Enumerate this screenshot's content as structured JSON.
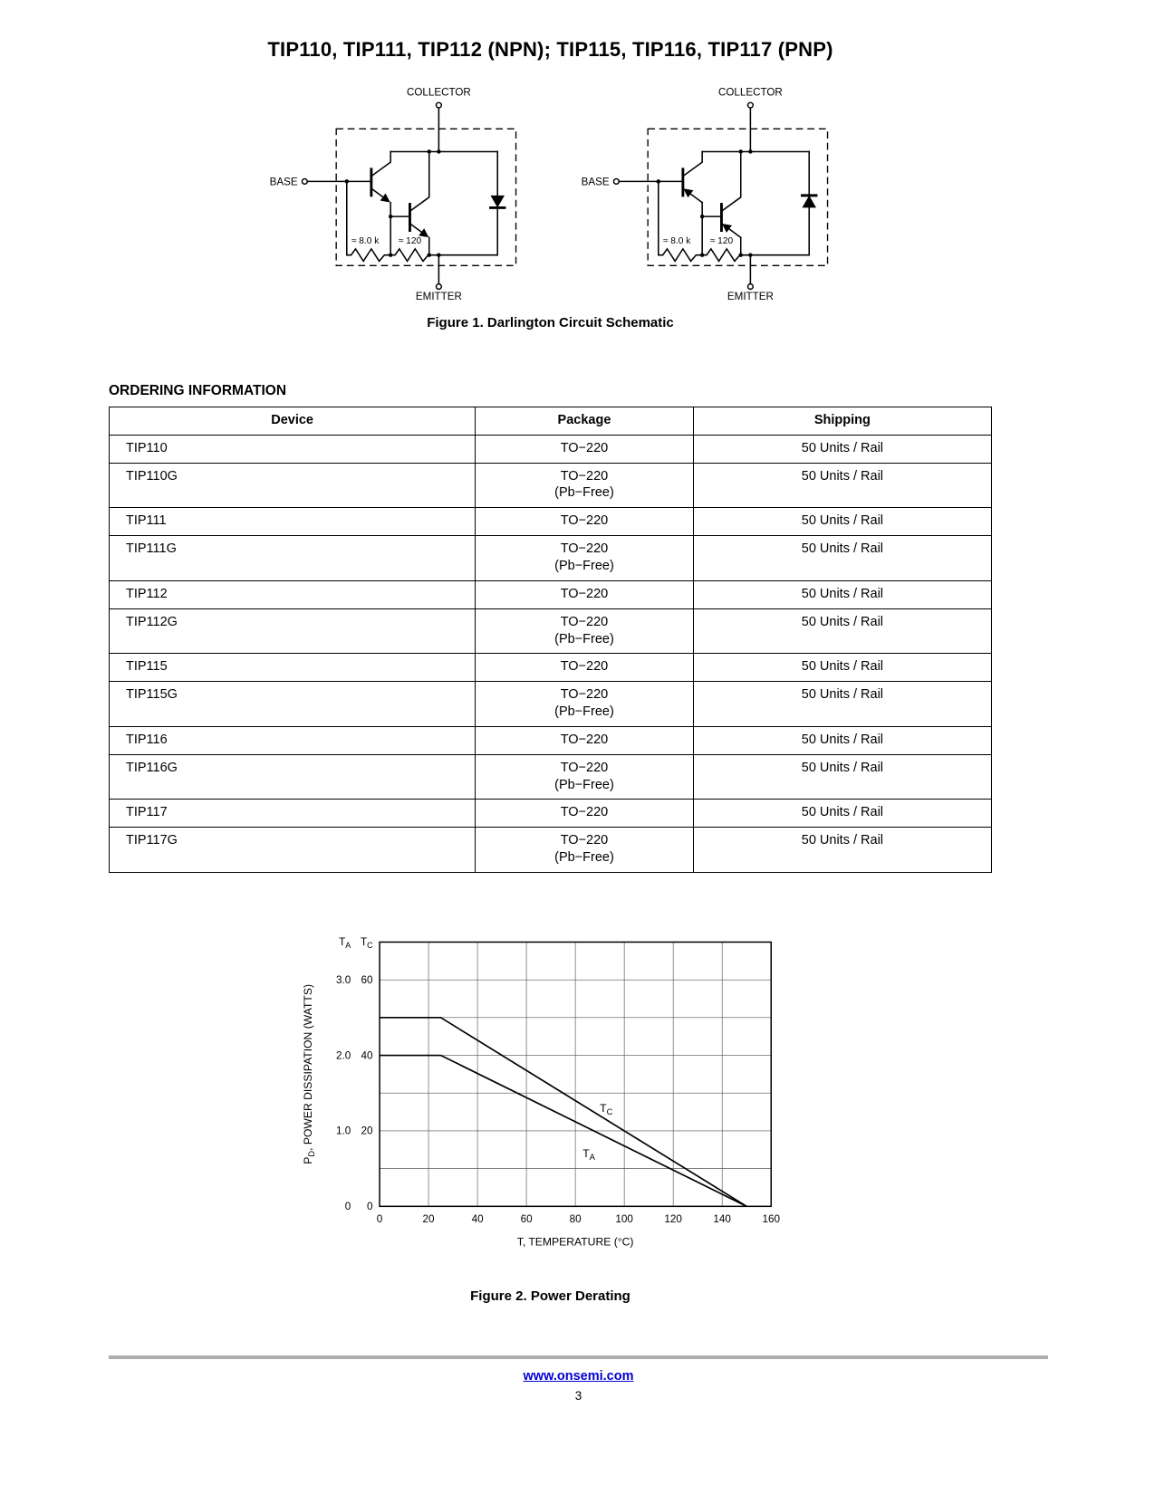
{
  "page": {
    "title": "TIP110, TIP111, TIP112 (NPN); TIP115, TIP116, TIP117 (PNP)"
  },
  "figure1": {
    "caption": "Figure 1. Darlington Circuit Schematic",
    "labels": {
      "collector": "COLLECTOR",
      "base": "BASE",
      "emitter": "EMITTER",
      "r1": "≈ 8.0 k",
      "r2": "≈ 120"
    }
  },
  "ordering": {
    "heading": "ORDERING INFORMATION",
    "columns": [
      "Device",
      "Package",
      "Shipping"
    ],
    "rows": [
      {
        "device": "TIP110",
        "package": [
          "TO−220"
        ],
        "shipping": "50 Units / Rail"
      },
      {
        "device": "TIP110G",
        "package": [
          "TO−220",
          "(Pb−Free)"
        ],
        "shipping": "50 Units / Rail"
      },
      {
        "device": "TIP111",
        "package": [
          "TO−220"
        ],
        "shipping": "50 Units / Rail"
      },
      {
        "device": "TIP111G",
        "package": [
          "TO−220",
          "(Pb−Free)"
        ],
        "shipping": "50 Units / Rail"
      },
      {
        "device": "TIP112",
        "package": [
          "TO−220"
        ],
        "shipping": "50 Units / Rail"
      },
      {
        "device": "TIP112G",
        "package": [
          "TO−220",
          "(Pb−Free)"
        ],
        "shipping": "50 Units / Rail"
      },
      {
        "device": "TIP115",
        "package": [
          "TO−220"
        ],
        "shipping": "50 Units / Rail"
      },
      {
        "device": "TIP115G",
        "package": [
          "TO−220",
          "(Pb−Free)"
        ],
        "shipping": "50 Units / Rail"
      },
      {
        "device": "TIP116",
        "package": [
          "TO−220"
        ],
        "shipping": "50 Units / Rail"
      },
      {
        "device": "TIP116G",
        "package": [
          "TO−220",
          "(Pb−Free)"
        ],
        "shipping": "50 Units / Rail"
      },
      {
        "device": "TIP117",
        "package": [
          "TO−220"
        ],
        "shipping": "50 Units / Rail"
      },
      {
        "device": "TIP117G",
        "package": [
          "TO−220",
          "(Pb−Free)"
        ],
        "shipping": "50 Units / Rail"
      }
    ]
  },
  "chart_data": {
    "type": "line",
    "title": "Power Derating",
    "xlabel": "T, TEMPERATURE (°C)",
    "ylabel": "P_D, POWER DISSIPATION (WATTS)",
    "grid": true,
    "x": {
      "min": 0,
      "max": 160,
      "tick_step": 20,
      "grid_step": 20
    },
    "y": {
      "min": 0,
      "max": 70,
      "grid_step": 10,
      "tick_values": [
        0,
        20,
        40,
        60
      ],
      "ta_tick_labels": [
        "0",
        "1.0",
        "2.0",
        "3.0"
      ],
      "tc_tick_labels": [
        "0",
        "20",
        "40",
        "60"
      ],
      "column_headers": [
        "T_A",
        "T_C"
      ]
    },
    "series": [
      {
        "name": "T_C",
        "units": "watts (case-derating scale)",
        "scale_to_plot": 1,
        "points": [
          [
            0,
            50
          ],
          [
            25,
            50
          ],
          [
            150,
            0
          ]
        ],
        "label_at": [
          90,
          25
        ]
      },
      {
        "name": "T_A",
        "units": "watts (ambient-derating scale)",
        "scale_to_plot": 20,
        "points": [
          [
            0,
            2.0
          ],
          [
            25,
            2.0
          ],
          [
            150,
            0
          ]
        ],
        "label_at": [
          83,
          13
        ]
      }
    ]
  },
  "figure2": {
    "caption": "Figure 2. Power Derating"
  },
  "footer": {
    "url": "www.onsemi.com",
    "page_number": "3"
  }
}
